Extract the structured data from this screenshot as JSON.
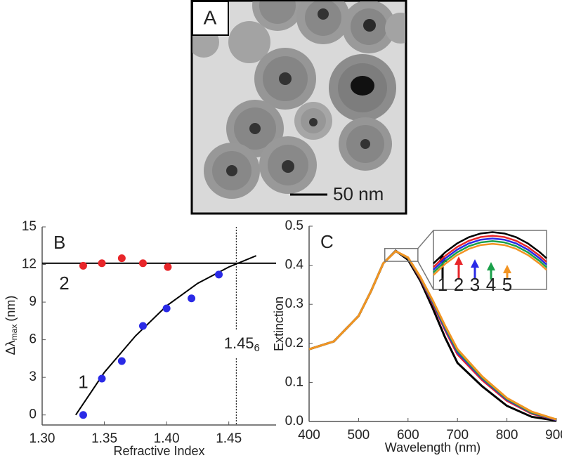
{
  "image_panel": {
    "label": "A",
    "scale_bar_label": "50 nm"
  },
  "chart_data": [
    {
      "type": "scatter",
      "panel_label": "B",
      "x_label": "Refractive Index",
      "y_label": {
        "main": "Δλ",
        "sub": "max",
        "unit": "(nm)"
      },
      "xlim": [
        1.3,
        1.488
      ],
      "xticks": [
        {
          "value": 1.3,
          "label": "1.30"
        },
        1.35,
        {
          "value": 1.4,
          "label": "1.40"
        },
        1.45
      ],
      "ylim": [
        -0.8,
        15
      ],
      "yticks": [
        0,
        3,
        6,
        9,
        12,
        15
      ],
      "series": [
        {
          "name": "1",
          "color": "#2a2ae6",
          "x": [
            1.333,
            1.348,
            1.364,
            1.381,
            1.4,
            1.42,
            1.442
          ],
          "values": [
            0,
            2.9,
            4.3,
            7.1,
            8.5,
            9.3,
            11.2
          ]
        },
        {
          "name": "2",
          "color": "#e8262a",
          "x": [
            1.333,
            1.348,
            1.364,
            1.381,
            1.401
          ],
          "values": [
            11.9,
            12.1,
            12.5,
            12.1,
            11.8
          ]
        }
      ],
      "fits": [
        {
          "color": "#000000",
          "x": [
            1.327,
            1.35,
            1.375,
            1.4,
            1.425,
            1.45,
            1.472
          ],
          "values": [
            0,
            3.4,
            6.3,
            8.7,
            10.5,
            11.8,
            12.7
          ]
        },
        {
          "color": "#000000",
          "x": [
            1.3,
            1.488
          ],
          "values": [
            12.1,
            12.1
          ]
        }
      ],
      "ref_line": {
        "x": 1.456,
        "label": "1.45",
        "label_sub": "6"
      }
    },
    {
      "type": "line",
      "panel_label": "C",
      "x_label": "Wavelength (nm)",
      "y_label": "Extinction",
      "xlim": [
        400,
        900
      ],
      "xticks": [
        400,
        500,
        600,
        700,
        800,
        900
      ],
      "ylim": [
        0,
        0.5
      ],
      "yticks": [
        {
          "value": 0,
          "label": "0.0"
        },
        0.1,
        0.2,
        0.3,
        0.4,
        0.5
      ],
      "x": [
        400,
        450,
        500,
        525,
        550,
        575,
        600,
        625,
        650,
        675,
        700,
        750,
        800,
        850,
        900
      ],
      "series": [
        {
          "color": "#000000",
          "values": [
            0.185,
            0.205,
            0.27,
            0.333,
            0.405,
            0.437,
            0.414,
            0.36,
            0.29,
            0.215,
            0.15,
            0.09,
            0.04,
            0.012,
            0.002
          ]
        },
        {
          "color": "#e8262a",
          "values": [
            0.185,
            0.205,
            0.27,
            0.333,
            0.405,
            0.436,
            0.418,
            0.366,
            0.302,
            0.234,
            0.172,
            0.106,
            0.053,
            0.02,
            0.004
          ]
        },
        {
          "color": "#2a2ae6",
          "values": [
            0.185,
            0.205,
            0.27,
            0.333,
            0.405,
            0.436,
            0.419,
            0.368,
            0.305,
            0.238,
            0.177,
            0.11,
            0.056,
            0.022,
            0.004
          ]
        },
        {
          "color": "#1aa04a",
          "values": [
            0.185,
            0.205,
            0.27,
            0.333,
            0.405,
            0.436,
            0.419,
            0.369,
            0.308,
            0.242,
            0.181,
            0.112,
            0.058,
            0.023,
            0.005
          ]
        },
        {
          "color": "#f29422",
          "values": [
            0.185,
            0.205,
            0.27,
            0.333,
            0.405,
            0.436,
            0.42,
            0.37,
            0.31,
            0.245,
            0.185,
            0.115,
            0.06,
            0.025,
            0.005
          ]
        }
      ],
      "inset": {
        "xlim": [
          553,
          620
        ],
        "ylim": [
          0.41,
          0.443
        ],
        "x": [
          553,
          560,
          567,
          574,
          581,
          588,
          595,
          602,
          609,
          616,
          620
        ],
        "series": [
          {
            "name": "1",
            "color": "#000000",
            "values": [
              0.4245,
              0.4308,
              0.4357,
              0.4392,
              0.4413,
              0.442,
              0.4413,
              0.4392,
              0.4357,
              0.4308,
              0.4274
            ]
          },
          {
            "name": "2",
            "color": "#e8262a",
            "values": [
              0.4225,
              0.4288,
              0.4337,
              0.4372,
              0.4393,
              0.44,
              0.4393,
              0.4372,
              0.4337,
              0.4288,
              0.4254
            ]
          },
          {
            "name": "3",
            "color": "#2a2ae6",
            "values": [
              0.421,
              0.4273,
              0.4322,
              0.4357,
              0.4378,
              0.4385,
              0.4378,
              0.4357,
              0.4322,
              0.4273,
              0.4239
            ]
          },
          {
            "name": "4",
            "color": "#1aa04a",
            "values": [
              0.4195,
              0.4258,
              0.4307,
              0.4342,
              0.4363,
              0.437,
              0.4363,
              0.4342,
              0.4307,
              0.4258,
              0.4224
            ]
          },
          {
            "name": "5",
            "color": "#f29422",
            "values": [
              0.418,
              0.4243,
              0.4292,
              0.4327,
              0.4348,
              0.4355,
              0.4348,
              0.4327,
              0.4292,
              0.4243,
              0.4209
            ]
          }
        ]
      }
    }
  ]
}
